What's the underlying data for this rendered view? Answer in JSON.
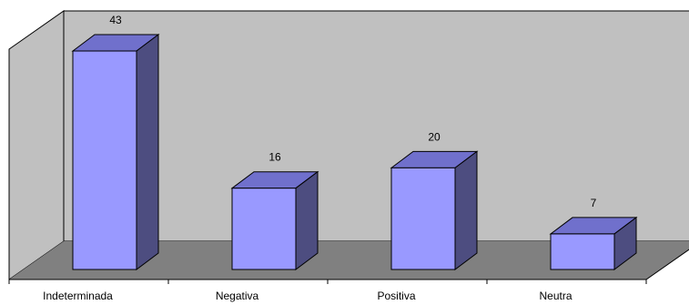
{
  "chart_data": {
    "type": "bar",
    "categories": [
      "Indeterminada",
      "Negativa",
      "Positiva",
      "Neutra"
    ],
    "values": [
      43,
      16,
      20,
      7
    ],
    "title": "",
    "xlabel": "",
    "ylabel": "",
    "ylim": [
      0,
      48
    ],
    "grid": false,
    "legend": "none",
    "three_d": true,
    "data_labels": true,
    "colors": {
      "bar_front": "#9999ff",
      "bar_top": "#7070cc",
      "bar_side": "#4d4d80",
      "back_wall": "#c0c0c0",
      "side_wall": "#c0c0c0",
      "floor": "#808080",
      "outline": "#000000"
    }
  }
}
